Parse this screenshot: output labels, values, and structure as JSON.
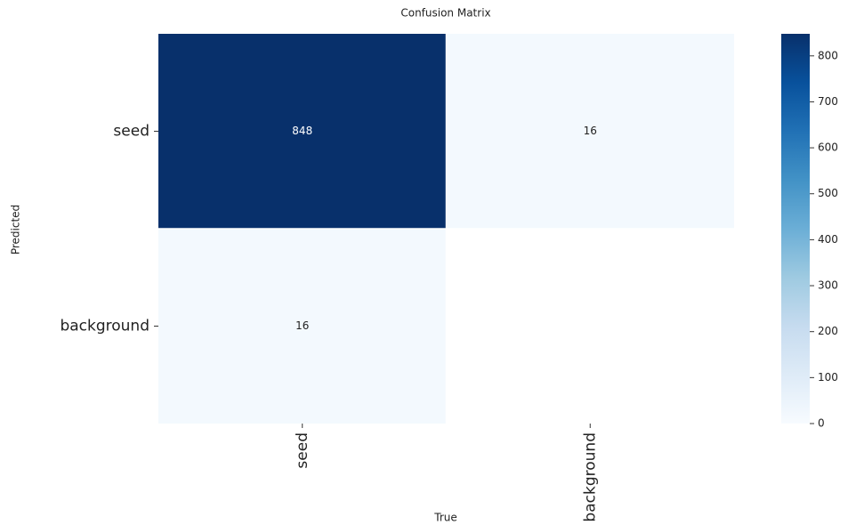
{
  "chart_data": {
    "type": "heatmap",
    "title": "Confusion Matrix",
    "x_label": "True",
    "y_label": "Predicted",
    "x_categories": [
      "seed",
      "background"
    ],
    "y_categories": [
      "seed",
      "background"
    ],
    "values": [
      [
        848,
        16
      ],
      [
        16,
        null
      ]
    ],
    "colormap": "Blues",
    "zlim": [
      0,
      848
    ],
    "zticks": [
      0,
      100,
      200,
      300,
      400,
      500,
      600,
      700,
      800
    ]
  }
}
